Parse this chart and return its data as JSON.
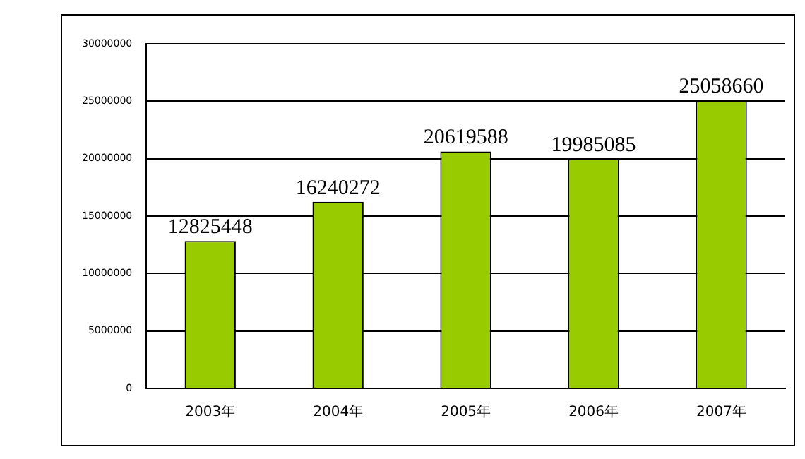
{
  "chart_data": {
    "type": "bar",
    "categories": [
      "2003年",
      "2004年",
      "2005年",
      "2006年",
      "2007年"
    ],
    "values": [
      12825448,
      16240272,
      20619588,
      19985085,
      25058660
    ],
    "color": "#99cc00",
    "ylim": [
      0,
      30000000
    ],
    "yticks": [
      0,
      5000000,
      10000000,
      15000000,
      20000000,
      25000000,
      30000000
    ],
    "grid": "y",
    "data_labels": true
  }
}
